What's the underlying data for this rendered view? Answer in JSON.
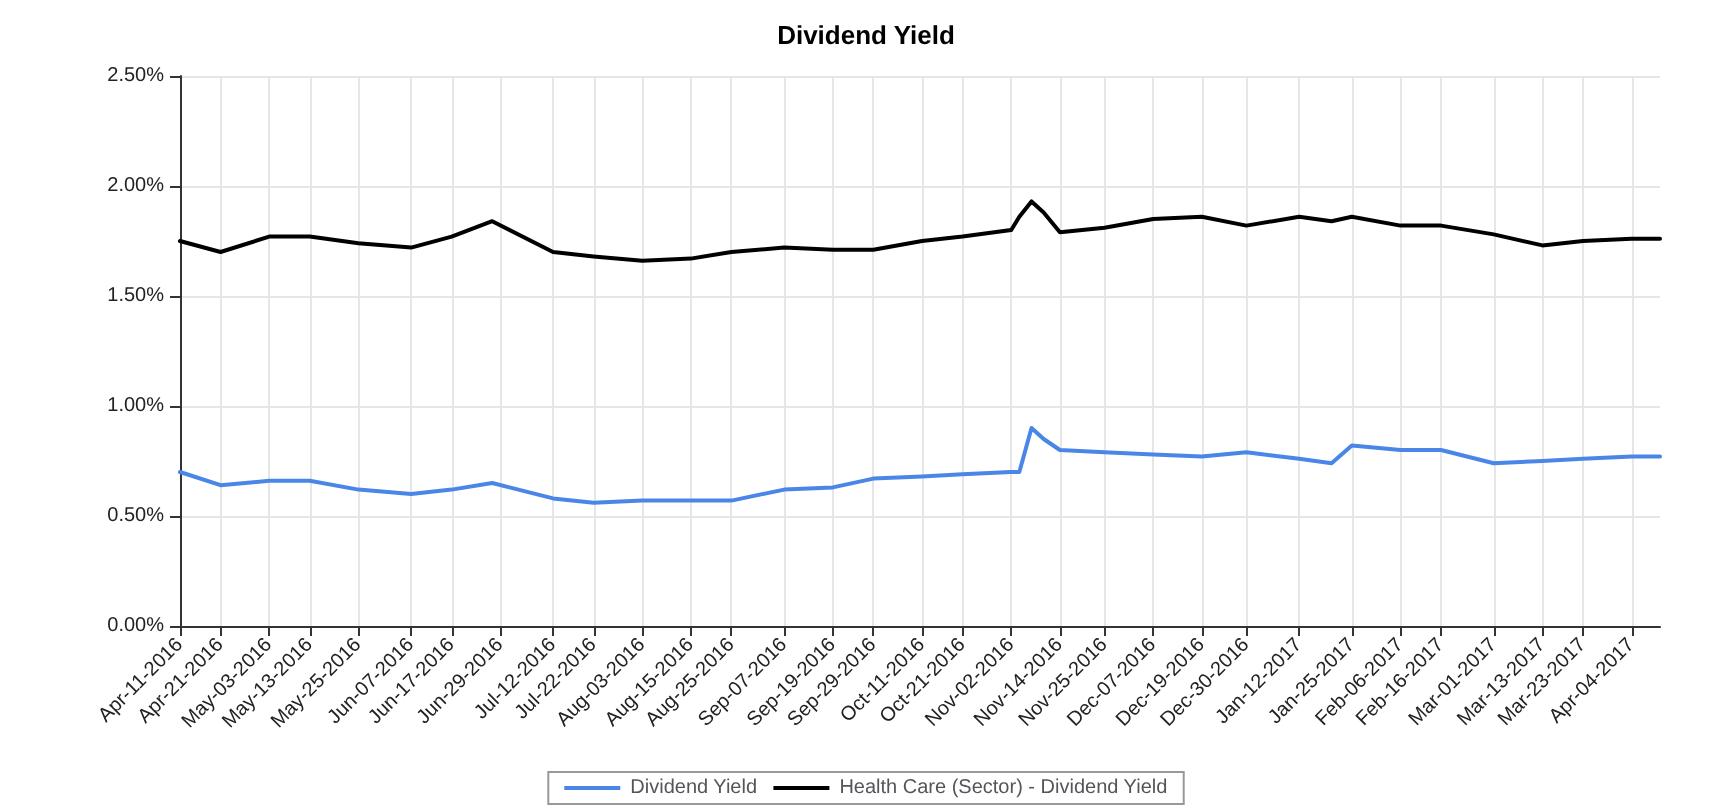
{
  "chart_data": {
    "type": "line",
    "title": "Dividend Yield",
    "x": [
      "2016-04-11",
      "2016-04-21",
      "2016-05-03",
      "2016-05-13",
      "2016-05-25",
      "2016-06-07",
      "2016-06-17",
      "2016-06-27",
      "2016-07-12",
      "2016-07-22",
      "2016-08-03",
      "2016-08-15",
      "2016-08-25",
      "2016-09-07",
      "2016-09-19",
      "2016-09-29",
      "2016-10-11",
      "2016-10-21",
      "2016-11-02",
      "2016-11-04",
      "2016-11-07",
      "2016-11-10",
      "2016-11-14",
      "2016-11-25",
      "2016-12-07",
      "2016-12-19",
      "2016-12-30",
      "2017-01-12",
      "2017-01-20",
      "2017-01-25",
      "2017-02-06",
      "2017-02-16",
      "2017-03-01",
      "2017-03-13",
      "2017-03-23",
      "2017-04-04",
      "2017-04-11"
    ],
    "series": [
      {
        "name": "Dividend Yield",
        "color": "#4a86e8",
        "values": [
          0.7,
          0.64,
          0.66,
          0.66,
          0.62,
          0.6,
          0.62,
          0.65,
          0.58,
          0.56,
          0.57,
          0.57,
          0.57,
          0.62,
          0.63,
          0.67,
          0.68,
          0.69,
          0.7,
          0.7,
          0.9,
          0.85,
          0.8,
          0.79,
          0.78,
          0.77,
          0.79,
          0.76,
          0.74,
          0.82,
          0.8,
          0.8,
          0.74,
          0.75,
          0.76,
          0.77,
          0.77
        ]
      },
      {
        "name": "Health Care (Sector) - Dividend Yield",
        "color": "#000000",
        "values": [
          1.75,
          1.7,
          1.77,
          1.77,
          1.74,
          1.72,
          1.77,
          1.84,
          1.7,
          1.68,
          1.66,
          1.67,
          1.7,
          1.72,
          1.71,
          1.71,
          1.75,
          1.77,
          1.8,
          1.86,
          1.93,
          1.88,
          1.79,
          1.81,
          1.85,
          1.86,
          1.82,
          1.86,
          1.84,
          1.86,
          1.82,
          1.82,
          1.78,
          1.73,
          1.75,
          1.76,
          1.76
        ]
      }
    ],
    "xlim": [
      "2016-04-11",
      "2017-04-11"
    ],
    "xticks": [
      {
        "value": "2016-04-11",
        "label": "Apr-11-2016"
      },
      {
        "value": "2016-04-21",
        "label": "Apr-21-2016"
      },
      {
        "value": "2016-05-03",
        "label": "May-03-2016"
      },
      {
        "value": "2016-05-13",
        "label": "May-13-2016"
      },
      {
        "value": "2016-05-25",
        "label": "May-25-2016"
      },
      {
        "value": "2016-06-07",
        "label": "Jun-07-2016"
      },
      {
        "value": "2016-06-17",
        "label": "Jun-17-2016"
      },
      {
        "value": "2016-06-29",
        "label": "Jun-29-2016"
      },
      {
        "value": "2016-07-12",
        "label": "Jul-12-2016"
      },
      {
        "value": "2016-07-22",
        "label": "Jul-22-2016"
      },
      {
        "value": "2016-08-03",
        "label": "Aug-03-2016"
      },
      {
        "value": "2016-08-15",
        "label": "Aug-15-2016"
      },
      {
        "value": "2016-08-25",
        "label": "Aug-25-2016"
      },
      {
        "value": "2016-09-07",
        "label": "Sep-07-2016"
      },
      {
        "value": "2016-09-19",
        "label": "Sep-19-2016"
      },
      {
        "value": "2016-09-29",
        "label": "Sep-29-2016"
      },
      {
        "value": "2016-10-11",
        "label": "Oct-11-2016"
      },
      {
        "value": "2016-10-21",
        "label": "Oct-21-2016"
      },
      {
        "value": "2016-11-02",
        "label": "Nov-02-2016"
      },
      {
        "value": "2016-11-14",
        "label": "Nov-14-2016"
      },
      {
        "value": "2016-11-25",
        "label": "Nov-25-2016"
      },
      {
        "value": "2016-12-07",
        "label": "Dec-07-2016"
      },
      {
        "value": "2016-12-19",
        "label": "Dec-19-2016"
      },
      {
        "value": "2016-12-30",
        "label": "Dec-30-2016"
      },
      {
        "value": "2017-01-12",
        "label": "Jan-12-2017"
      },
      {
        "value": "2017-01-25",
        "label": "Jan-25-2017"
      },
      {
        "value": "2017-02-06",
        "label": "Feb-06-2017"
      },
      {
        "value": "2017-02-16",
        "label": "Feb-16-2017"
      },
      {
        "value": "2017-03-01",
        "label": "Mar-01-2017"
      },
      {
        "value": "2017-03-13",
        "label": "Mar-13-2017"
      },
      {
        "value": "2017-03-23",
        "label": "Mar-23-2017"
      },
      {
        "value": "2017-04-04",
        "label": "Apr-04-2017"
      }
    ],
    "ylim": [
      0,
      2.5
    ],
    "yticks": [
      {
        "value": 0,
        "label": "0.00%"
      },
      {
        "value": 0.5,
        "label": "0.50%"
      },
      {
        "value": 1,
        "label": "1.00%"
      },
      {
        "value": 1.5,
        "label": "1.50%"
      },
      {
        "value": 2,
        "label": "2.00%"
      },
      {
        "value": 2.5,
        "label": "2.50%"
      }
    ],
    "grid": true,
    "legend": "bottom",
    "marker": "none",
    "line_style": "solid"
  }
}
